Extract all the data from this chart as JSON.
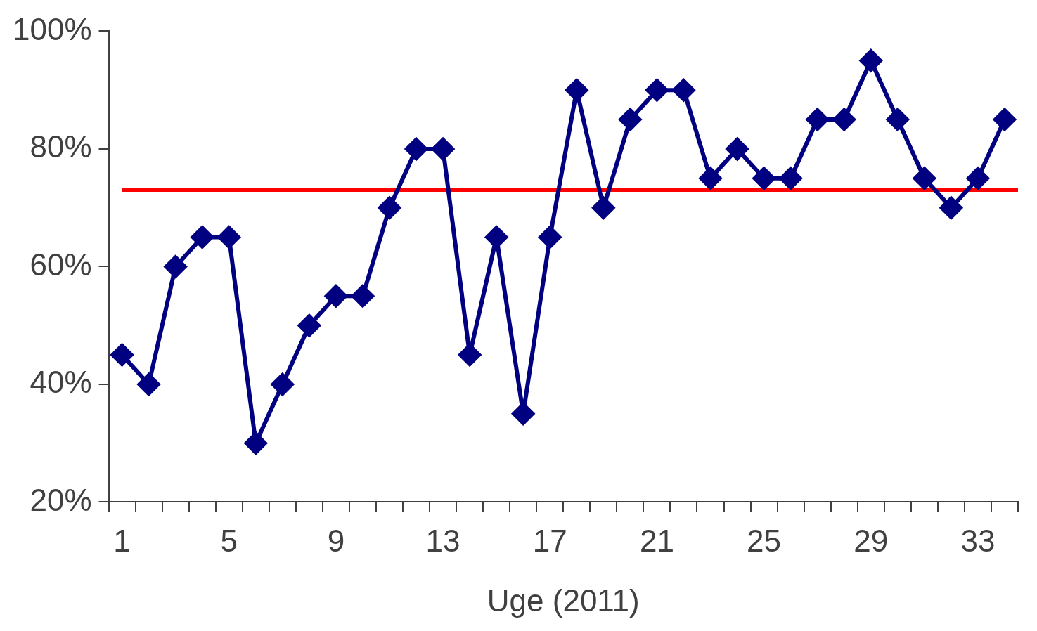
{
  "chart_data": {
    "type": "line",
    "xlabel": "Uge (2011)",
    "categories": [
      "1",
      null,
      null,
      null,
      "5",
      null,
      null,
      null,
      "9",
      null,
      null,
      null,
      "13",
      null,
      null,
      null,
      "17",
      null,
      null,
      null,
      "21",
      null,
      null,
      null,
      "25",
      null,
      null,
      null,
      "29",
      null,
      null,
      null,
      "33",
      null
    ],
    "series": [
      {
        "color": "#000080",
        "values": [
          45,
          40,
          60,
          65,
          65,
          30,
          40,
          50,
          55,
          55,
          70,
          80,
          80,
          45,
          65,
          35,
          65,
          90,
          70,
          85,
          90,
          90,
          75,
          80,
          75,
          75,
          85,
          85,
          95,
          85,
          75,
          70,
          75,
          85
        ]
      }
    ],
    "ylim": [
      20,
      100
    ],
    "yticks": [
      {
        "value": 20,
        "label": "20%"
      },
      {
        "value": 40,
        "label": "40%"
      },
      {
        "value": 60,
        "label": "60%"
      },
      {
        "value": 80,
        "label": "80%"
      },
      {
        "value": 100,
        "label": "100%"
      }
    ],
    "ref_lines": [
      {
        "axis": "y",
        "value": 73,
        "color": "#ff0000"
      }
    ],
    "marker": "diamond",
    "line_style": "solid",
    "legend": false
  }
}
